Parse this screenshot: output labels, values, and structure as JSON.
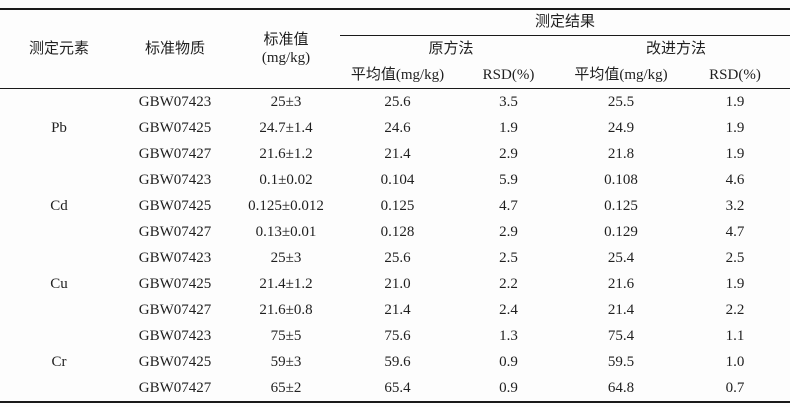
{
  "page": {
    "background": "#fdfdfd",
    "text_color": "#1f1f1f",
    "rule_color": "#1a1a1a"
  },
  "table": {
    "header": {
      "col_element": "测定元素",
      "col_material": "标准物质",
      "col_standard_line1": "标准值",
      "col_standard_line2": "(mg/kg)",
      "results_group": "测定结果",
      "method_original": "原方法",
      "method_improved": "改进方法",
      "avg_label": "平均值(mg/kg)",
      "rsd_label": "RSD(%)"
    },
    "groups": [
      {
        "element": "Pb",
        "rows": [
          {
            "material": "GBW07423",
            "standard": "25±3",
            "orig_avg": "25.6",
            "orig_rsd": "3.5",
            "imp_avg": "25.5",
            "imp_rsd": "1.9"
          },
          {
            "material": "GBW07425",
            "standard": "24.7±1.4",
            "orig_avg": "24.6",
            "orig_rsd": "1.9",
            "imp_avg": "24.9",
            "imp_rsd": "1.9"
          },
          {
            "material": "GBW07427",
            "standard": "21.6±1.2",
            "orig_avg": "21.4",
            "orig_rsd": "2.9",
            "imp_avg": "21.8",
            "imp_rsd": "1.9"
          }
        ]
      },
      {
        "element": "Cd",
        "rows": [
          {
            "material": "GBW07423",
            "standard": "0.1±0.02",
            "orig_avg": "0.104",
            "orig_rsd": "5.9",
            "imp_avg": "0.108",
            "imp_rsd": "4.6"
          },
          {
            "material": "GBW07425",
            "standard": "0.125±0.012",
            "orig_avg": "0.125",
            "orig_rsd": "4.7",
            "imp_avg": "0.125",
            "imp_rsd": "3.2"
          },
          {
            "material": "GBW07427",
            "standard": "0.13±0.01",
            "orig_avg": "0.128",
            "orig_rsd": "2.9",
            "imp_avg": "0.129",
            "imp_rsd": "4.7"
          }
        ]
      },
      {
        "element": "Cu",
        "rows": [
          {
            "material": "GBW07423",
            "standard": "25±3",
            "orig_avg": "25.6",
            "orig_rsd": "2.5",
            "imp_avg": "25.4",
            "imp_rsd": "2.5"
          },
          {
            "material": "GBW07425",
            "standard": "21.4±1.2",
            "orig_avg": "21.0",
            "orig_rsd": "2.2",
            "imp_avg": "21.6",
            "imp_rsd": "1.9"
          },
          {
            "material": "GBW07427",
            "standard": "21.6±0.8",
            "orig_avg": "21.4",
            "orig_rsd": "2.4",
            "imp_avg": "21.4",
            "imp_rsd": "2.2"
          }
        ]
      },
      {
        "element": "Cr",
        "rows": [
          {
            "material": "GBW07423",
            "standard": "75±5",
            "orig_avg": "75.6",
            "orig_rsd": "1.3",
            "imp_avg": "75.4",
            "imp_rsd": "1.1"
          },
          {
            "material": "GBW07425",
            "standard": "59±3",
            "orig_avg": "59.6",
            "orig_rsd": "0.9",
            "imp_avg": "59.5",
            "imp_rsd": "1.0"
          },
          {
            "material": "GBW07427",
            "standard": "65±2",
            "orig_avg": "65.4",
            "orig_rsd": "0.9",
            "imp_avg": "64.8",
            "imp_rsd": "0.7"
          }
        ]
      }
    ]
  }
}
